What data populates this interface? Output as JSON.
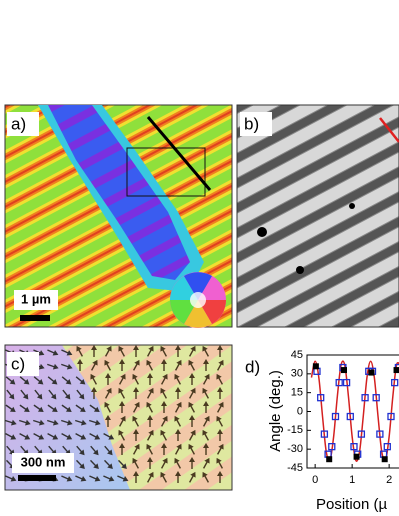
{
  "panels": {
    "a": {
      "label": "a)",
      "scale_bar": "1 µm"
    },
    "b": {
      "label": "b)"
    },
    "c": {
      "label": "c)",
      "scale_bar": "300 nm"
    }
  },
  "chart_data": {
    "type": "scatter",
    "label": "d)",
    "y_label": "Angle (deg.)",
    "x_label": "Position (µ",
    "xlim": [
      -0.22,
      2.5
    ],
    "ylim": [
      -45,
      45
    ],
    "xticks": [
      0,
      1,
      2
    ],
    "yticks": [
      45,
      30,
      15,
      0,
      -15,
      -30,
      -45
    ],
    "series": [
      {
        "color": "#d42020",
        "style": "line",
        "x": [
          -0.1,
          0,
          0.1,
          0.2,
          0.3,
          0.4,
          0.5,
          0.6,
          0.7,
          0.8,
          0.9,
          1.0,
          1.1,
          1.2,
          1.3,
          1.4,
          1.5,
          1.6,
          1.7,
          1.8,
          1.9,
          2.0,
          2.1,
          2.2,
          2.3
        ],
        "values": [
          27,
          40,
          27,
          -4,
          -32,
          -39,
          -20,
          12,
          37,
          37,
          12,
          -20,
          -39,
          -32,
          -4,
          27,
          40,
          27,
          -4,
          -32,
          -39,
          -20,
          12,
          37,
          37
        ]
      },
      {
        "color": "#2030d0",
        "style": "open-square",
        "x": [
          0.05,
          0.15,
          0.25,
          0.35,
          0.45,
          0.55,
          0.65,
          0.75,
          0.85,
          0.95,
          1.05,
          1.15,
          1.25,
          1.35,
          1.45,
          1.55,
          1.65,
          1.75,
          1.85,
          1.95,
          2.05,
          2.15,
          2.25
        ],
        "values": [
          32,
          11,
          -18,
          -34,
          -28,
          -4,
          23,
          35,
          23,
          -4,
          -28,
          -34,
          -18,
          11,
          32,
          32,
          11,
          -18,
          -34,
          -28,
          -4,
          23,
          35
        ]
      },
      {
        "color": "#000000",
        "style": "filled-square",
        "x": [
          0.02,
          0.38,
          0.78,
          1.12,
          1.52,
          1.88,
          2.2
        ],
        "values": [
          36,
          -38,
          33,
          -36,
          31,
          -38,
          33
        ]
      }
    ]
  }
}
